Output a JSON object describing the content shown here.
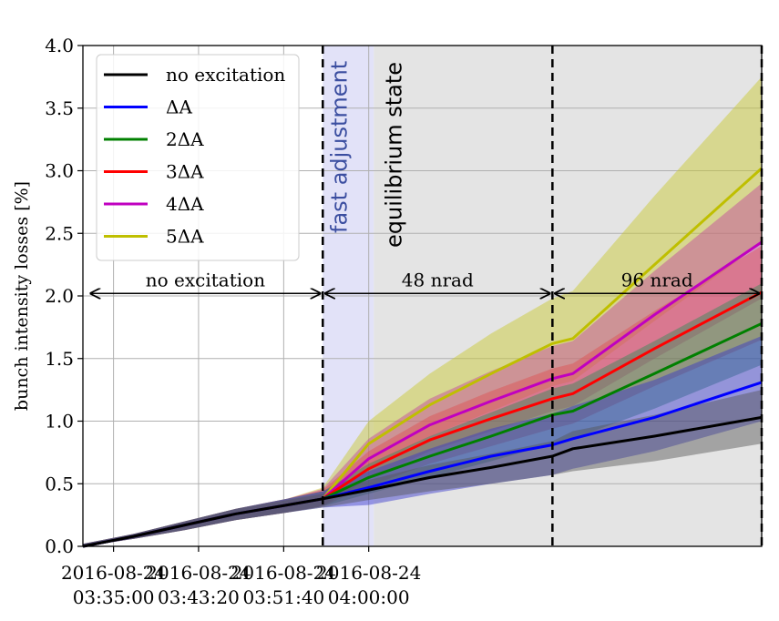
{
  "chart_data": {
    "type": "line",
    "ylabel": "bunch intensity losses [%]",
    "ylim": [
      0.0,
      4.0
    ],
    "yticks": [
      "0.0",
      "0.5",
      "1.0",
      "1.5",
      "2.0",
      "2.5",
      "3.0",
      "3.5",
      "4.0"
    ],
    "x_axis": {
      "unit": "minutes since 2016-08-24 03:32:00",
      "range": [
        0,
        66.5
      ],
      "ticks": [
        {
          "date": "2016-08-24",
          "time": "03:35:00",
          "value": 3.0
        },
        {
          "date": "2016-08-24",
          "time": "03:43:20",
          "value": 11.33
        },
        {
          "date": "2016-08-24",
          "time": "03:51:40",
          "value": 19.67
        },
        {
          "date": "2016-08-24",
          "time": "04:00:00",
          "value": 28.0
        }
      ]
    },
    "grid": true,
    "legend_position": "top-left",
    "phases": {
      "fast_adjustment_span": [
        23.5,
        28.5
      ],
      "equilibrium_span": [
        28.5,
        66.5
      ],
      "phase_lines": [
        23.5,
        46.0,
        66.5
      ],
      "labels": [
        "fast adjustment",
        "equilibrium state"
      ]
    },
    "annotations": [
      {
        "text": "no excitation",
        "from": 0.5,
        "to": 23.5,
        "y": 2.02
      },
      {
        "text": "48 nrad",
        "from": 23.5,
        "to": 46.0,
        "y": 2.02
      },
      {
        "text": "96 nrad",
        "from": 46.0,
        "to": 66.5,
        "y": 2.02
      }
    ],
    "x": [
      0,
      5,
      10,
      15,
      20,
      23.5,
      28,
      34,
      40,
      46,
      48,
      56,
      66.5
    ],
    "series": [
      {
        "name": "no excitation",
        "color": "#000000",
        "values": [
          0.0,
          0.08,
          0.17,
          0.26,
          0.33,
          0.38,
          0.45,
          0.55,
          0.63,
          0.72,
          0.78,
          0.88,
          1.03
        ],
        "band_low": [
          0.0,
          0.06,
          0.13,
          0.21,
          0.27,
          0.31,
          0.37,
          0.44,
          0.5,
          0.57,
          0.6,
          0.68,
          0.82
        ],
        "band_high": [
          0.02,
          0.1,
          0.2,
          0.3,
          0.37,
          0.42,
          0.53,
          0.65,
          0.74,
          0.84,
          0.92,
          1.05,
          1.25
        ],
        "band_color": "#555555"
      },
      {
        "name": "ΔA",
        "color": "#0000ff",
        "values": [
          0.0,
          0.08,
          0.17,
          0.26,
          0.33,
          0.38,
          0.47,
          0.6,
          0.72,
          0.81,
          0.86,
          1.03,
          1.31
        ],
        "band_low": [
          0.0,
          0.06,
          0.13,
          0.21,
          0.27,
          0.31,
          0.33,
          0.42,
          0.5,
          0.57,
          0.62,
          0.76,
          1.0
        ],
        "band_high": [
          0.02,
          0.1,
          0.2,
          0.3,
          0.38,
          0.44,
          0.6,
          0.78,
          0.94,
          1.06,
          1.12,
          1.33,
          1.68
        ],
        "band_color": "#3333cc"
      },
      {
        "name": "2ΔA",
        "color": "#008000",
        "values": [
          0.0,
          0.08,
          0.17,
          0.26,
          0.33,
          0.38,
          0.55,
          0.72,
          0.88,
          1.05,
          1.08,
          1.38,
          1.78
        ],
        "band_low": [
          0.0,
          0.06,
          0.13,
          0.21,
          0.27,
          0.32,
          0.42,
          0.55,
          0.68,
          0.82,
          0.86,
          1.1,
          1.45
        ],
        "band_high": [
          0.02,
          0.1,
          0.2,
          0.3,
          0.38,
          0.44,
          0.66,
          0.88,
          1.07,
          1.26,
          1.3,
          1.64,
          2.1
        ],
        "band_color": "#2e8b57"
      },
      {
        "name": "3ΔA",
        "color": "#ff0000",
        "values": [
          0.0,
          0.08,
          0.17,
          0.26,
          0.33,
          0.38,
          0.62,
          0.85,
          1.02,
          1.18,
          1.22,
          1.58,
          2.03
        ],
        "band_low": [
          0.0,
          0.06,
          0.13,
          0.21,
          0.27,
          0.32,
          0.48,
          0.66,
          0.8,
          0.94,
          0.98,
          1.28,
          1.65
        ],
        "band_high": [
          0.02,
          0.1,
          0.2,
          0.3,
          0.38,
          0.45,
          0.76,
          1.04,
          1.24,
          1.42,
          1.46,
          1.88,
          2.4
        ],
        "band_color": "#e05050"
      },
      {
        "name": "4ΔA",
        "color": "#c000c0",
        "values": [
          0.0,
          0.08,
          0.17,
          0.26,
          0.33,
          0.38,
          0.7,
          0.97,
          1.16,
          1.34,
          1.38,
          1.85,
          2.43
        ],
        "band_low": [
          0.0,
          0.06,
          0.13,
          0.21,
          0.27,
          0.32,
          0.54,
          0.76,
          0.92,
          1.08,
          1.12,
          1.5,
          1.98
        ],
        "band_high": [
          0.02,
          0.1,
          0.2,
          0.3,
          0.38,
          0.46,
          0.86,
          1.18,
          1.4,
          1.6,
          1.64,
          2.2,
          2.9
        ],
        "band_color": "#c040a0"
      },
      {
        "name": "5ΔA",
        "color": "#bfbf00",
        "values": [
          0.0,
          0.08,
          0.17,
          0.26,
          0.33,
          0.38,
          0.82,
          1.13,
          1.38,
          1.62,
          1.66,
          2.25,
          3.02
        ],
        "band_low": [
          0.0,
          0.06,
          0.13,
          0.21,
          0.27,
          0.32,
          0.62,
          0.88,
          1.08,
          1.28,
          1.32,
          1.8,
          2.42
        ],
        "band_high": [
          0.02,
          0.1,
          0.2,
          0.3,
          0.38,
          0.47,
          1.0,
          1.38,
          1.7,
          1.98,
          2.04,
          2.8,
          3.75
        ],
        "band_color": "#c8c828"
      }
    ]
  }
}
